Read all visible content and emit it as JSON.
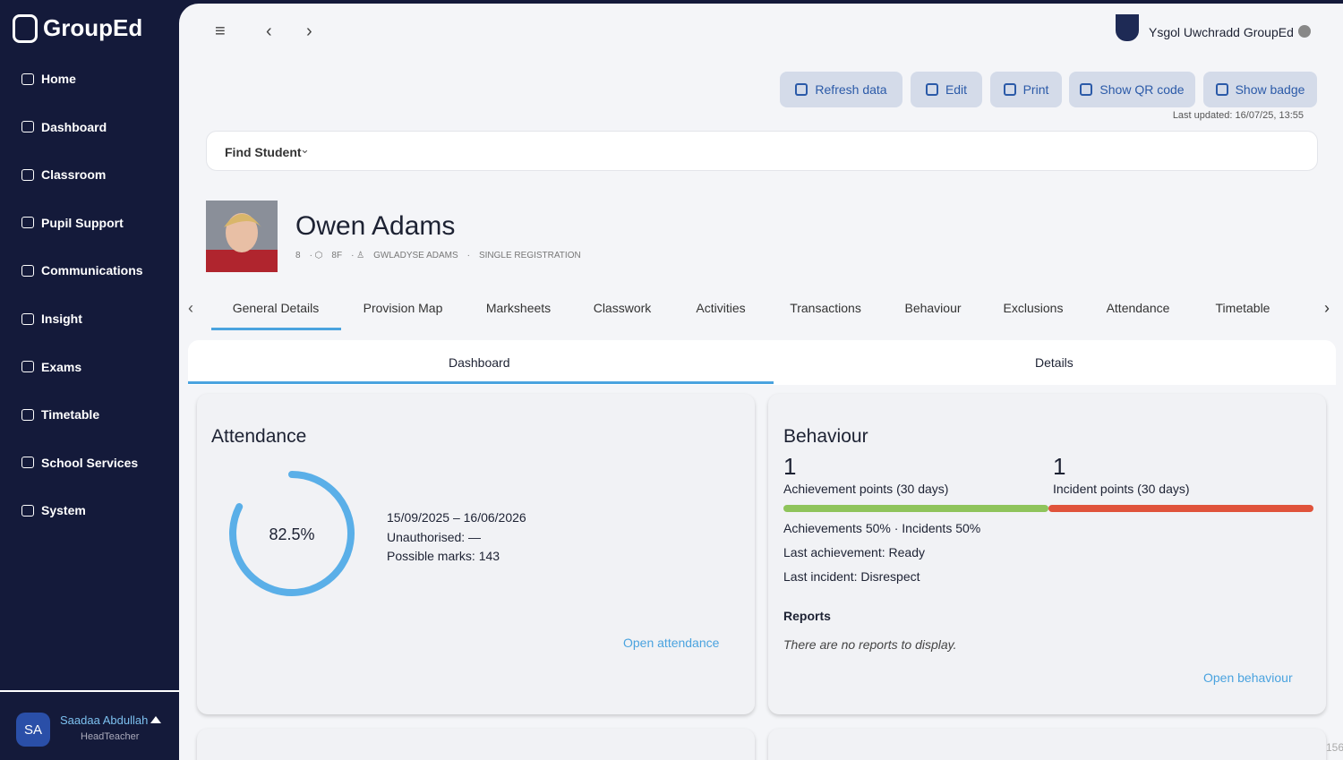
{
  "sidebar": {
    "brand": "GroupEd",
    "nav": [
      "Home",
      "Dashboard",
      "Classroom",
      "Pupil Support",
      "Communications",
      "Insight",
      "Exams",
      "Timetable",
      "School Services",
      "System"
    ],
    "user": {
      "initials": "SA",
      "name": "Saadaa Abdullah",
      "role": "HeadTeacher"
    }
  },
  "header": {
    "school": "Ysgol Uwchradd GroupEd",
    "actions": [
      "Refresh data",
      "Edit",
      "Print",
      "Show QR code",
      "Show badge"
    ],
    "last_updated": "Last updated: 16/07/25, 13:55"
  },
  "find_student": "Find Student",
  "student": {
    "name": "Owen Adams",
    "year": "8",
    "form": "8F",
    "contact": "GWLADYSE ADAMS",
    "registration": "SINGLE REGISTRATION"
  },
  "tabs": [
    "General Details",
    "Provision Map",
    "Marksheets",
    "Classwork",
    "Activities",
    "Transactions",
    "Behaviour",
    "Exclusions",
    "Attendance",
    "Timetable"
  ],
  "subtabs": [
    "Dashboard",
    "Details"
  ],
  "attendance": {
    "title": "Attendance",
    "percent": 82.5,
    "percent_label": "82.5%",
    "dates": "15/09/2025 – 16/06/2026",
    "unauthorised": "Unauthorised: —",
    "possible_marks": "Possible marks: 143",
    "link": "Open attendance"
  },
  "behaviour": {
    "title": "Behaviour",
    "achievement_points": 1,
    "achievement_label": "Achievement points (30 days)",
    "incident_points": 1,
    "incident_label": "Incident points (30 days)",
    "split": "Achievements 50% · Incidents 50%",
    "last_achievement": "Last achievement: Ready",
    "last_incident": "Last incident: Disrespect",
    "reports_title": "Reports",
    "reports_empty": "There are no reports to display.",
    "link": "Open behaviour"
  },
  "corner_note": "156"
}
